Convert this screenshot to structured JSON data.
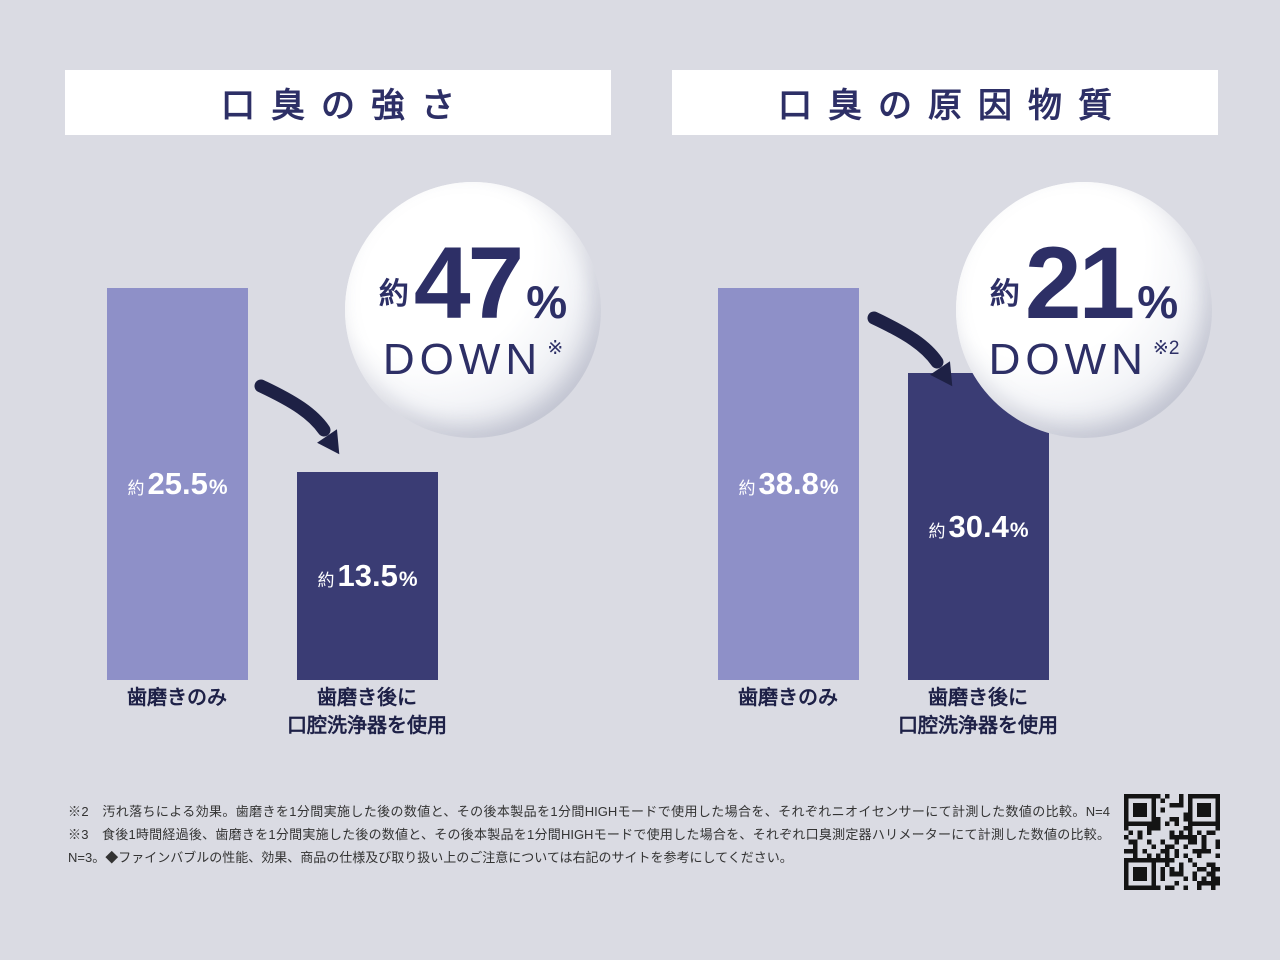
{
  "page": {
    "background": "#dadbe3"
  },
  "colors": {
    "navy": "#2d2f66",
    "bar_light": "#8e90c8",
    "bar_dark": "#3a3c74",
    "arrow": "#1e2145",
    "title_background": "#ffffff",
    "footnote_text": "#333333"
  },
  "charts": [
    {
      "title": "口臭の強さ",
      "badge": {
        "prefix": "約",
        "value": "47",
        "unit": "%",
        "word": "DOWN",
        "note": "※"
      },
      "bars": [
        {
          "prefix": "約",
          "value": "25.5",
          "unit": "%",
          "category_line1": "歯磨きのみ",
          "category_line2": ""
        },
        {
          "prefix": "約",
          "value": "13.5",
          "unit": "%",
          "category_line1": "歯磨き後に",
          "category_line2": "口腔洗浄器を使用"
        }
      ]
    },
    {
      "title": "口臭の原因物質",
      "badge": {
        "prefix": "約",
        "value": "21",
        "unit": "%",
        "word": "DOWN",
        "note": "※2"
      },
      "bars": [
        {
          "prefix": "約",
          "value": "38.8",
          "unit": "%",
          "category_line1": "歯磨きのみ",
          "category_line2": ""
        },
        {
          "prefix": "約",
          "value": "30.4",
          "unit": "%",
          "category_line1": "歯磨き後に",
          "category_line2": "口腔洗浄器を使用"
        }
      ]
    }
  ],
  "footnote": "※2　汚れ落ちによる効果。歯磨きを1分間実施した後の数値と、その後本製品を1分間HIGHモードで使用した場合を、それぞれニオイセンサーにて計測した数値の比較。N=4　※3　食後1時間経過後、歯磨きを1分間実施した後の数値と、その後本製品を1分間HIGHモードで使用した場合を、それぞれ口臭測定器ハリメーターにて計測した数値の比較。N=3。◆ファインバブルの性能、効果、商品の仕様及び取り扱い上のご注意については右記のサイトを参考にしてください。",
  "chart_data": [
    {
      "type": "bar",
      "title": "口臭の強さ",
      "categories": [
        "歯磨きのみ",
        "歯磨き後に口腔洗浄器を使用"
      ],
      "values": [
        25.5,
        13.5
      ],
      "unit": "%",
      "value_labels": [
        "約25.5%",
        "約13.5%"
      ],
      "annotation": "約47% DOWN ※",
      "reduction_percent": 47,
      "ylim": [
        0,
        26
      ],
      "grid": false,
      "legend": false
    },
    {
      "type": "bar",
      "title": "口臭の原因物質",
      "categories": [
        "歯磨きのみ",
        "歯磨き後に口腔洗浄器を使用"
      ],
      "values": [
        38.8,
        30.4
      ],
      "unit": "%",
      "value_labels": [
        "約38.8%",
        "約30.4%"
      ],
      "annotation": "約21% DOWN ※2",
      "reduction_percent": 21,
      "ylim": [
        0,
        40
      ],
      "grid": false,
      "legend": false
    }
  ]
}
